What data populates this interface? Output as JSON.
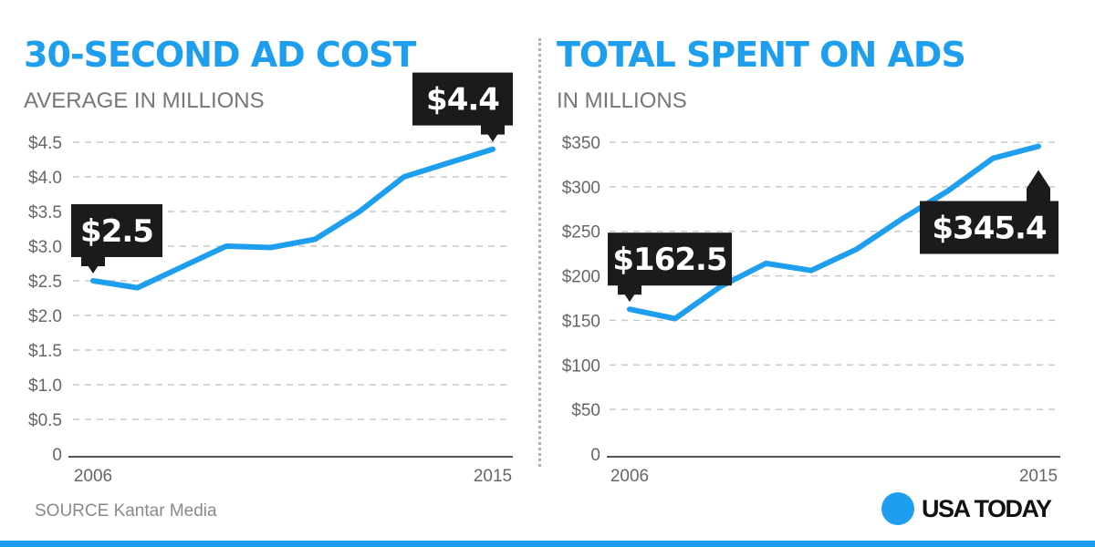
{
  "colors": {
    "accent": "#1e9eee",
    "gridline": "#c9c9c9",
    "axis": "#555555",
    "tick_text": "#666666",
    "callout_bg": "#1b1b1b",
    "callout_text": "#ffffff"
  },
  "footer": {
    "source": "SOURCE Kantar Media",
    "brand": "USA TODAY"
  },
  "chart_data": [
    {
      "type": "line",
      "title": "30-SECOND AD COST",
      "subtitle": "AVERAGE IN MILLIONS",
      "x": [
        2006,
        2007,
        2008,
        2009,
        2010,
        2011,
        2012,
        2013,
        2014,
        2015
      ],
      "values": [
        2.5,
        2.4,
        2.7,
        3.0,
        2.98,
        3.1,
        3.5,
        4.0,
        4.2,
        4.4
      ],
      "ylim": [
        0,
        4.5
      ],
      "yticks": [
        0,
        0.5,
        1.0,
        1.5,
        2.0,
        2.5,
        3.0,
        3.5,
        4.0,
        4.5
      ],
      "ytick_labels": [
        "0",
        "$0.5",
        "$1.0",
        "$1.5",
        "$2.0",
        "$2.5",
        "$3.0",
        "$3.5",
        "$4.0",
        "$4.5"
      ],
      "xtick_labels": [
        {
          "x": 2006,
          "label": "2006"
        },
        {
          "x": 2015,
          "label": "2015"
        }
      ],
      "grid": true,
      "callouts": [
        {
          "x": 2006,
          "label": "$2.5",
          "placement": "above"
        },
        {
          "x": 2015,
          "label": "$4.4",
          "placement": "above"
        }
      ]
    },
    {
      "type": "line",
      "title": "TOTAL SPENT ON ADS",
      "subtitle": "IN MILLIONS",
      "x": [
        2006,
        2007,
        2008,
        2009,
        2010,
        2011,
        2012,
        2013,
        2014,
        2015
      ],
      "values": [
        162.5,
        152,
        188,
        214,
        206,
        230,
        264,
        295,
        332,
        345.4
      ],
      "ylim": [
        0,
        350
      ],
      "yticks": [
        0,
        50,
        100,
        150,
        200,
        250,
        300,
        350
      ],
      "ytick_labels": [
        "0",
        "$50",
        "$100",
        "$150",
        "$200",
        "$250",
        "$300",
        "$350"
      ],
      "xtick_labels": [
        {
          "x": 2006,
          "label": "2006"
        },
        {
          "x": 2015,
          "label": "2015"
        }
      ],
      "grid": true,
      "callouts": [
        {
          "x": 2006,
          "label": "$162.5",
          "placement": "above"
        },
        {
          "x": 2015,
          "label": "$345.4",
          "placement": "below"
        }
      ]
    }
  ]
}
